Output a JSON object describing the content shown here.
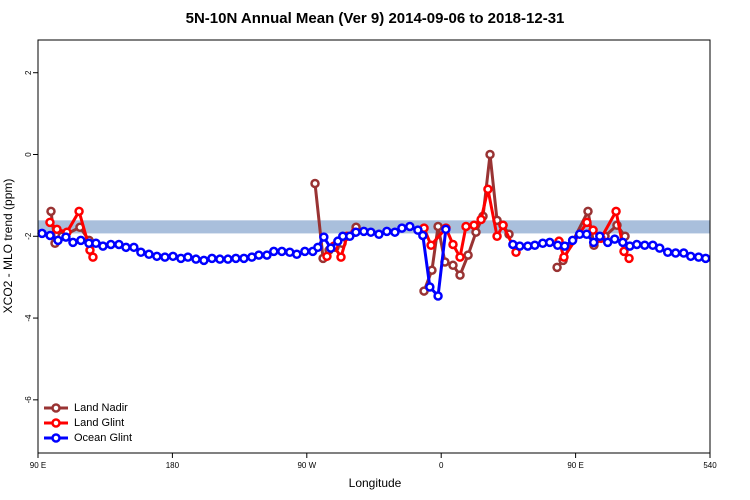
{
  "chart_data": {
    "type": "line",
    "title": "5N-10N Annual Mean (Ver 9)   2014-09-06 to 2018-12-31",
    "x_label": "Longitude",
    "y_label": "XCO2 - MLO trend (ppm)",
    "xlim": [
      90,
      540
    ],
    "xticks": [
      {
        "value": 90,
        "label": "90 E"
      },
      180,
      {
        "value": 270,
        "label": "90 W"
      },
      {
        "value": 360,
        "label": "0"
      },
      {
        "value": 450,
        "label": "90 E"
      },
      540
    ],
    "ylim": [
      -7.3,
      2.8
    ],
    "yticks": [
      2,
      0,
      -2,
      -4,
      -6
    ],
    "band": [
      -1.93,
      -1.61
    ],
    "band_color": "#a9bfdc",
    "legend": "bottom-left",
    "series": [
      {
        "name": "Land Nadir",
        "color": "#993333",
        "x": [
          98.7,
          101.4,
          106.1,
          118.1,
          124.2,
          null,
          275.5,
          280.9,
          284.9,
          288.9,
          293.6,
          303.0,
          null,
          348.5,
          353.8,
          357.9,
          362.5,
          367.9,
          372.6,
          378.0,
          383.3,
          388.0,
          392.7,
          397.4,
          401.4,
          405.4,
          null,
          437.6,
          441.6,
          458.3,
          462.3,
          469.7,
          477.7,
          483.1
        ],
        "values": [
          -1.39,
          -2.17,
          -2.0,
          -1.78,
          -2.1,
          null,
          -0.71,
          -2.54,
          -2.34,
          -2.27,
          -2.17,
          -1.78,
          null,
          -3.34,
          -2.83,
          -1.76,
          -2.63,
          -2.71,
          -2.95,
          -2.46,
          -1.9,
          -1.51,
          0.0,
          -1.61,
          -1.73,
          -1.95,
          null,
          -2.76,
          -2.59,
          -1.39,
          -2.22,
          -2.0,
          -1.73,
          -2.0
        ]
      },
      {
        "name": "Land Glint",
        "color": "#ff0000",
        "x": [
          98.0,
          102.7,
          109.4,
          117.5,
          124.8,
          126.8,
          null,
          283.5,
          288.2,
          292.9,
          296.9,
          302.3,
          null,
          348.5,
          353.2,
          363.2,
          367.9,
          372.6,
          376.6,
          382.0,
          386.7,
          391.3,
          397.4,
          401.4,
          410.1,
          null,
          438.9,
          442.2,
          457.6,
          461.7,
          467.0,
          477.1,
          482.4,
          485.8
        ],
        "values": [
          -1.66,
          -1.83,
          -1.9,
          -1.39,
          -2.34,
          -2.51,
          null,
          -2.49,
          -2.24,
          -2.51,
          -2.0,
          -1.9,
          null,
          -1.8,
          -2.22,
          -1.8,
          -2.2,
          -2.51,
          -1.76,
          -1.73,
          -1.59,
          -0.85,
          -2.0,
          -1.73,
          -2.39,
          null,
          -2.12,
          -2.51,
          -1.66,
          -1.85,
          -2.05,
          -1.39,
          -2.37,
          -2.54
        ]
      },
      {
        "name": "Ocean Glint",
        "color": "#0000ff",
        "x": [
          92.7,
          98.1,
          103.4,
          108.7,
          113.4,
          118.7,
          124.1,
          128.8,
          133.5,
          138.8,
          144.2,
          148.9,
          154.2,
          158.9,
          164.3,
          169.6,
          175.0,
          180.4,
          185.7,
          190.4,
          195.8,
          201.1,
          206.5,
          211.8,
          217.2,
          222.5,
          227.9,
          233.2,
          237.9,
          243.3,
          247.9,
          253.3,
          258.6,
          263.3,
          268.7,
          274.0,
          277.4,
          281.4,
          286.1,
          290.8,
          294.1,
          298.8,
          302.9,
          308.2,
          312.9,
          318.3,
          323.6,
          329.0,
          333.7,
          339.0,
          344.4,
          347.7,
          352.4,
          357.9,
          363.1,
          null,
          408.0,
          412.6,
          418.0,
          422.7,
          428.0,
          432.7,
          438.0,
          442.7,
          448.0,
          452.7,
          457.4,
          462.1,
          466.2,
          471.5,
          476.2,
          481.6,
          486.3,
          491.0,
          496.3,
          501.7,
          506.3,
          511.7,
          517.0,
          522.4,
          527.1,
          532.4,
          537.1
        ],
        "values": [
          -1.93,
          -1.98,
          -2.1,
          -2.02,
          -2.15,
          -2.1,
          -2.17,
          -2.17,
          -2.24,
          -2.2,
          -2.2,
          -2.27,
          -2.27,
          -2.39,
          -2.44,
          -2.49,
          -2.51,
          -2.49,
          -2.54,
          -2.51,
          -2.56,
          -2.59,
          -2.54,
          -2.56,
          -2.56,
          -2.54,
          -2.54,
          -2.51,
          -2.46,
          -2.46,
          -2.37,
          -2.37,
          -2.39,
          -2.44,
          -2.37,
          -2.37,
          -2.27,
          -2.02,
          -2.29,
          -2.12,
          -2.0,
          -2.0,
          -1.9,
          -1.88,
          -1.9,
          -1.95,
          -1.88,
          -1.9,
          -1.8,
          -1.76,
          -1.85,
          -1.98,
          -3.24,
          -3.46,
          -1.83,
          null,
          -2.2,
          -2.24,
          -2.24,
          -2.22,
          -2.17,
          -2.15,
          -2.22,
          -2.24,
          -2.1,
          -1.95,
          -1.95,
          -2.15,
          -2.0,
          -2.15,
          -2.07,
          -2.15,
          -2.24,
          -2.2,
          -2.22,
          -2.22,
          -2.29,
          -2.39,
          -2.41,
          -2.41,
          -2.49,
          -2.51,
          -2.54
        ]
      }
    ]
  }
}
